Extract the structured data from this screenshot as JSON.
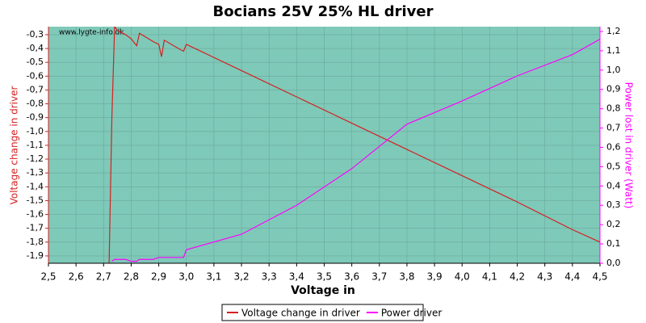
{
  "chart_data": {
    "type": "line",
    "title": "Bocians 25V 25% HL driver",
    "watermark": "www.lygte-info.dk",
    "x_label": "Voltage in",
    "y_label": "Voltage change in driver",
    "y2_label": "Power lost in driver (Watt)",
    "background": "#7fc9b9",
    "grid": true,
    "legend": "bottom",
    "x": [
      2.72,
      2.73,
      2.74,
      2.75,
      2.78,
      2.8,
      2.82,
      2.83,
      2.88,
      2.9,
      2.91,
      2.92,
      2.98,
      2.99,
      3.0,
      3.2,
      3.4,
      3.6,
      3.8,
      4.0,
      4.2,
      4.4,
      4.5
    ],
    "series": [
      {
        "name": "Voltage change in driver",
        "color": "#d42020",
        "values": [
          -1.95,
          -0.9,
          -0.24,
          -0.27,
          -0.3,
          -0.33,
          -0.38,
          -0.29,
          -0.35,
          -0.37,
          -0.46,
          -0.34,
          -0.41,
          -0.42,
          -0.37,
          -0.56,
          -0.75,
          -0.94,
          -1.13,
          -1.32,
          -1.51,
          -1.71,
          -1.8
        ]
      },
      {
        "name": "Power driver",
        "color": "#ff00ff",
        "axis": "y2",
        "values": [
          null,
          0.01,
          0.02,
          0.02,
          0.02,
          0.01,
          0.01,
          0.02,
          0.02,
          0.03,
          0.03,
          0.03,
          0.03,
          0.03,
          0.07,
          0.15,
          0.3,
          0.49,
          0.72,
          0.84,
          0.97,
          1.08,
          1.16
        ]
      }
    ],
    "xlim": [
      2.5,
      4.5
    ],
    "xticks": [
      {
        "value": 2.5,
        "label": "2,5"
      },
      {
        "value": 2.6,
        "label": "2,6"
      },
      {
        "value": 2.7,
        "label": "2,7"
      },
      {
        "value": 2.8,
        "label": "2,8"
      },
      {
        "value": 2.9,
        "label": "2,9"
      },
      {
        "value": 3.0,
        "label": "3,0"
      },
      {
        "value": 3.1,
        "label": "3,1"
      },
      {
        "value": 3.2,
        "label": "3,2"
      },
      {
        "value": 3.3,
        "label": "3,3"
      },
      {
        "value": 3.4,
        "label": "3,4"
      },
      {
        "value": 3.5,
        "label": "3,5"
      },
      {
        "value": 3.6,
        "label": "3,6"
      },
      {
        "value": 3.7,
        "label": "3,7"
      },
      {
        "value": 3.8,
        "label": "3,8"
      },
      {
        "value": 3.9,
        "label": "3,9"
      },
      {
        "value": 4.0,
        "label": "4,0"
      },
      {
        "value": 4.1,
        "label": "4,1"
      },
      {
        "value": 4.2,
        "label": "4,2"
      },
      {
        "value": 4.3,
        "label": "4,3"
      },
      {
        "value": 4.4,
        "label": "4,4"
      },
      {
        "value": 4.5,
        "label": "4,5"
      }
    ],
    "ylim": [
      -1.953,
      -0.242
    ],
    "yticks": [
      {
        "value": -0.3,
        "label": "-0,3"
      },
      {
        "value": -0.4,
        "label": "-0,4"
      },
      {
        "value": -0.5,
        "label": "-0,5"
      },
      {
        "value": -0.6,
        "label": "-0,6"
      },
      {
        "value": -0.7,
        "label": "-0,7"
      },
      {
        "value": -0.8,
        "label": "-0,8"
      },
      {
        "value": -0.9,
        "label": "-0,9"
      },
      {
        "value": -1.0,
        "label": "-1,0"
      },
      {
        "value": -1.1,
        "label": "-1,1"
      },
      {
        "value": -1.2,
        "label": "-1,2"
      },
      {
        "value": -1.3,
        "label": "-1,3"
      },
      {
        "value": -1.4,
        "label": "-1,4"
      },
      {
        "value": -1.5,
        "label": "-1,5"
      },
      {
        "value": -1.6,
        "label": "-1,6"
      },
      {
        "value": -1.7,
        "label": "-1,7"
      },
      {
        "value": -1.8,
        "label": "-1,8"
      },
      {
        "value": -1.9,
        "label": "-1,9"
      }
    ],
    "y2lim": [
      0,
      1.225
    ],
    "y2ticks": [
      {
        "value": 0.0,
        "label": "0,0"
      },
      {
        "value": 0.1,
        "label": "0,1"
      },
      {
        "value": 0.2,
        "label": "0,2"
      },
      {
        "value": 0.3,
        "label": "0,3"
      },
      {
        "value": 0.4,
        "label": "0,4"
      },
      {
        "value": 0.5,
        "label": "0,5"
      },
      {
        "value": 0.6,
        "label": "0,6"
      },
      {
        "value": 0.7,
        "label": "0,7"
      },
      {
        "value": 0.8,
        "label": "0,8"
      },
      {
        "value": 0.9,
        "label": "0,9"
      },
      {
        "value": 1.0,
        "label": "1,0"
      },
      {
        "value": 1.1,
        "label": "1,1"
      },
      {
        "value": 1.2,
        "label": "1,2"
      }
    ]
  }
}
